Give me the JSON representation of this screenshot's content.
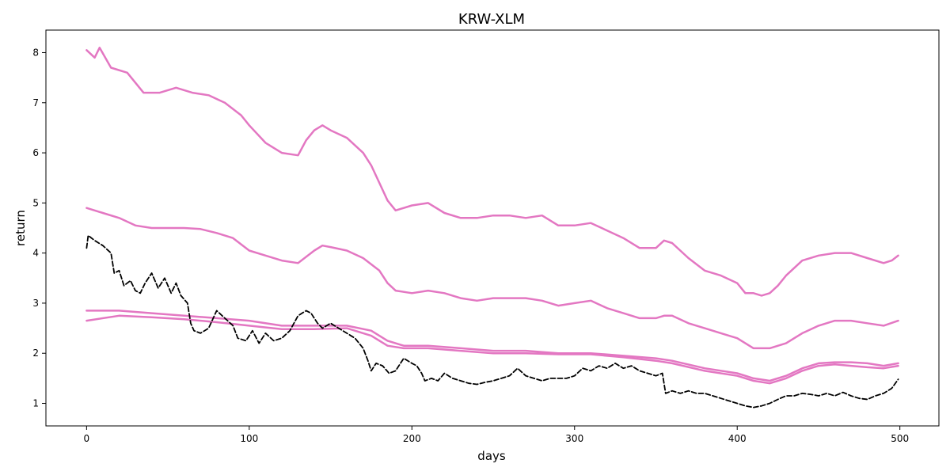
{
  "chart_data": {
    "type": "line",
    "title": "KRW-XLM",
    "xlabel": "days",
    "ylabel": "return",
    "xlim": [
      -25,
      524
    ],
    "ylim": [
      0.55,
      8.45
    ],
    "x_ticks": [
      0,
      100,
      200,
      300,
      400,
      500
    ],
    "y_ticks": [
      1,
      2,
      3,
      4,
      5,
      6,
      7,
      8
    ],
    "grid": false,
    "legend": "none",
    "series": [
      {
        "color": "#e377c2",
        "style": "solid",
        "points": [
          [
            0,
            8.05
          ],
          [
            5,
            7.9
          ],
          [
            8,
            8.1
          ],
          [
            15,
            7.7
          ],
          [
            25,
            7.6
          ],
          [
            35,
            7.2
          ],
          [
            45,
            7.2
          ],
          [
            55,
            7.3
          ],
          [
            65,
            7.2
          ],
          [
            75,
            7.15
          ],
          [
            85,
            7.0
          ],
          [
            95,
            6.75
          ],
          [
            100,
            6.55
          ],
          [
            110,
            6.2
          ],
          [
            120,
            6.0
          ],
          [
            130,
            5.95
          ],
          [
            135,
            6.25
          ],
          [
            140,
            6.45
          ],
          [
            145,
            6.55
          ],
          [
            150,
            6.45
          ],
          [
            160,
            6.3
          ],
          [
            170,
            6.0
          ],
          [
            175,
            5.75
          ],
          [
            180,
            5.4
          ],
          [
            185,
            5.05
          ],
          [
            190,
            4.85
          ],
          [
            200,
            4.95
          ],
          [
            210,
            5.0
          ],
          [
            220,
            4.8
          ],
          [
            230,
            4.7
          ],
          [
            240,
            4.7
          ],
          [
            250,
            4.75
          ],
          [
            260,
            4.75
          ],
          [
            270,
            4.7
          ],
          [
            280,
            4.75
          ],
          [
            290,
            4.55
          ],
          [
            300,
            4.55
          ],
          [
            310,
            4.6
          ],
          [
            320,
            4.45
          ],
          [
            330,
            4.3
          ],
          [
            340,
            4.1
          ],
          [
            350,
            4.1
          ],
          [
            355,
            4.25
          ],
          [
            360,
            4.2
          ],
          [
            370,
            3.9
          ],
          [
            380,
            3.65
          ],
          [
            390,
            3.55
          ],
          [
            400,
            3.4
          ],
          [
            405,
            3.2
          ],
          [
            410,
            3.2
          ],
          [
            415,
            3.15
          ],
          [
            420,
            3.2
          ],
          [
            425,
            3.35
          ],
          [
            430,
            3.55
          ],
          [
            440,
            3.85
          ],
          [
            450,
            3.95
          ],
          [
            460,
            4.0
          ],
          [
            470,
            4.0
          ],
          [
            480,
            3.9
          ],
          [
            490,
            3.8
          ],
          [
            495,
            3.85
          ],
          [
            499,
            3.95
          ]
        ]
      },
      {
        "color": "#e377c2",
        "style": "solid",
        "points": [
          [
            0,
            4.9
          ],
          [
            10,
            4.8
          ],
          [
            20,
            4.7
          ],
          [
            30,
            4.55
          ],
          [
            40,
            4.5
          ],
          [
            50,
            4.5
          ],
          [
            60,
            4.5
          ],
          [
            70,
            4.48
          ],
          [
            80,
            4.4
          ],
          [
            90,
            4.3
          ],
          [
            100,
            4.05
          ],
          [
            110,
            3.95
          ],
          [
            120,
            3.85
          ],
          [
            130,
            3.8
          ],
          [
            140,
            4.05
          ],
          [
            145,
            4.15
          ],
          [
            150,
            4.12
          ],
          [
            160,
            4.05
          ],
          [
            170,
            3.9
          ],
          [
            180,
            3.65
          ],
          [
            185,
            3.4
          ],
          [
            190,
            3.25
          ],
          [
            200,
            3.2
          ],
          [
            210,
            3.25
          ],
          [
            220,
            3.2
          ],
          [
            230,
            3.1
          ],
          [
            240,
            3.05
          ],
          [
            250,
            3.1
          ],
          [
            260,
            3.1
          ],
          [
            270,
            3.1
          ],
          [
            280,
            3.05
          ],
          [
            290,
            2.95
          ],
          [
            300,
            3.0
          ],
          [
            310,
            3.05
          ],
          [
            320,
            2.9
          ],
          [
            330,
            2.8
          ],
          [
            340,
            2.7
          ],
          [
            350,
            2.7
          ],
          [
            355,
            2.75
          ],
          [
            360,
            2.75
          ],
          [
            370,
            2.6
          ],
          [
            380,
            2.5
          ],
          [
            390,
            2.4
          ],
          [
            400,
            2.3
          ],
          [
            410,
            2.1
          ],
          [
            420,
            2.1
          ],
          [
            430,
            2.2
          ],
          [
            440,
            2.4
          ],
          [
            450,
            2.55
          ],
          [
            460,
            2.65
          ],
          [
            470,
            2.65
          ],
          [
            480,
            2.6
          ],
          [
            490,
            2.55
          ],
          [
            499,
            2.65
          ]
        ]
      },
      {
        "color": "#e377c2",
        "style": "solid",
        "points": [
          [
            0,
            2.85
          ],
          [
            20,
            2.85
          ],
          [
            40,
            2.8
          ],
          [
            60,
            2.75
          ],
          [
            80,
            2.7
          ],
          [
            100,
            2.65
          ],
          [
            120,
            2.55
          ],
          [
            140,
            2.55
          ],
          [
            160,
            2.55
          ],
          [
            175,
            2.45
          ],
          [
            185,
            2.25
          ],
          [
            195,
            2.15
          ],
          [
            210,
            2.15
          ],
          [
            230,
            2.1
          ],
          [
            250,
            2.05
          ],
          [
            270,
            2.05
          ],
          [
            290,
            2.0
          ],
          [
            310,
            2.0
          ],
          [
            330,
            1.95
          ],
          [
            350,
            1.9
          ],
          [
            360,
            1.85
          ],
          [
            380,
            1.7
          ],
          [
            400,
            1.6
          ],
          [
            410,
            1.5
          ],
          [
            420,
            1.45
          ],
          [
            430,
            1.55
          ],
          [
            440,
            1.7
          ],
          [
            450,
            1.8
          ],
          [
            460,
            1.82
          ],
          [
            470,
            1.82
          ],
          [
            480,
            1.8
          ],
          [
            490,
            1.75
          ],
          [
            499,
            1.8
          ]
        ]
      },
      {
        "color": "#e377c2",
        "style": "solid",
        "points": [
          [
            0,
            2.65
          ],
          [
            20,
            2.75
          ],
          [
            40,
            2.72
          ],
          [
            60,
            2.68
          ],
          [
            80,
            2.62
          ],
          [
            100,
            2.55
          ],
          [
            120,
            2.48
          ],
          [
            140,
            2.48
          ],
          [
            160,
            2.5
          ],
          [
            175,
            2.35
          ],
          [
            185,
            2.15
          ],
          [
            195,
            2.1
          ],
          [
            210,
            2.1
          ],
          [
            230,
            2.05
          ],
          [
            250,
            2.0
          ],
          [
            270,
            2.0
          ],
          [
            290,
            1.98
          ],
          [
            310,
            1.98
          ],
          [
            330,
            1.92
          ],
          [
            350,
            1.85
          ],
          [
            360,
            1.8
          ],
          [
            380,
            1.65
          ],
          [
            400,
            1.55
          ],
          [
            410,
            1.45
          ],
          [
            420,
            1.4
          ],
          [
            430,
            1.5
          ],
          [
            440,
            1.65
          ],
          [
            450,
            1.75
          ],
          [
            460,
            1.78
          ],
          [
            470,
            1.75
          ],
          [
            480,
            1.72
          ],
          [
            490,
            1.7
          ],
          [
            499,
            1.75
          ]
        ]
      },
      {
        "color": "#000000",
        "style": "dashed",
        "points": [
          [
            0,
            4.1
          ],
          [
            1,
            4.35
          ],
          [
            5,
            4.25
          ],
          [
            10,
            4.15
          ],
          [
            15,
            4.0
          ],
          [
            17,
            3.6
          ],
          [
            20,
            3.65
          ],
          [
            23,
            3.35
          ],
          [
            27,
            3.45
          ],
          [
            30,
            3.25
          ],
          [
            33,
            3.2
          ],
          [
            36,
            3.4
          ],
          [
            40,
            3.6
          ],
          [
            44,
            3.3
          ],
          [
            48,
            3.5
          ],
          [
            52,
            3.2
          ],
          [
            55,
            3.4
          ],
          [
            58,
            3.15
          ],
          [
            62,
            3.0
          ],
          [
            64,
            2.6
          ],
          [
            66,
            2.45
          ],
          [
            70,
            2.4
          ],
          [
            75,
            2.5
          ],
          [
            80,
            2.85
          ],
          [
            85,
            2.7
          ],
          [
            90,
            2.55
          ],
          [
            93,
            2.3
          ],
          [
            98,
            2.25
          ],
          [
            102,
            2.45
          ],
          [
            106,
            2.2
          ],
          [
            110,
            2.4
          ],
          [
            115,
            2.25
          ],
          [
            120,
            2.3
          ],
          [
            125,
            2.45
          ],
          [
            130,
            2.75
          ],
          [
            135,
            2.85
          ],
          [
            138,
            2.8
          ],
          [
            142,
            2.6
          ],
          [
            145,
            2.5
          ],
          [
            150,
            2.6
          ],
          [
            155,
            2.5
          ],
          [
            160,
            2.4
          ],
          [
            165,
            2.3
          ],
          [
            170,
            2.1
          ],
          [
            173,
            1.85
          ],
          [
            175,
            1.65
          ],
          [
            178,
            1.8
          ],
          [
            182,
            1.75
          ],
          [
            186,
            1.6
          ],
          [
            190,
            1.65
          ],
          [
            195,
            1.9
          ],
          [
            200,
            1.8
          ],
          [
            203,
            1.75
          ],
          [
            206,
            1.6
          ],
          [
            208,
            1.45
          ],
          [
            212,
            1.5
          ],
          [
            216,
            1.45
          ],
          [
            220,
            1.6
          ],
          [
            225,
            1.5
          ],
          [
            230,
            1.45
          ],
          [
            235,
            1.4
          ],
          [
            240,
            1.38
          ],
          [
            245,
            1.42
          ],
          [
            250,
            1.45
          ],
          [
            255,
            1.5
          ],
          [
            260,
            1.55
          ],
          [
            265,
            1.7
          ],
          [
            270,
            1.55
          ],
          [
            275,
            1.5
          ],
          [
            280,
            1.45
          ],
          [
            285,
            1.5
          ],
          [
            290,
            1.5
          ],
          [
            295,
            1.5
          ],
          [
            300,
            1.55
          ],
          [
            305,
            1.7
          ],
          [
            310,
            1.65
          ],
          [
            315,
            1.75
          ],
          [
            320,
            1.7
          ],
          [
            325,
            1.8
          ],
          [
            330,
            1.7
          ],
          [
            335,
            1.75
          ],
          [
            340,
            1.65
          ],
          [
            345,
            1.6
          ],
          [
            350,
            1.55
          ],
          [
            354,
            1.6
          ],
          [
            356,
            1.2
          ],
          [
            360,
            1.25
          ],
          [
            365,
            1.2
          ],
          [
            370,
            1.25
          ],
          [
            375,
            1.2
          ],
          [
            380,
            1.2
          ],
          [
            385,
            1.15
          ],
          [
            390,
            1.1
          ],
          [
            395,
            1.05
          ],
          [
            400,
            1.0
          ],
          [
            405,
            0.95
          ],
          [
            410,
            0.92
          ],
          [
            415,
            0.95
          ],
          [
            420,
            1.0
          ],
          [
            425,
            1.08
          ],
          [
            430,
            1.15
          ],
          [
            435,
            1.15
          ],
          [
            440,
            1.2
          ],
          [
            445,
            1.18
          ],
          [
            450,
            1.15
          ],
          [
            455,
            1.2
          ],
          [
            460,
            1.15
          ],
          [
            465,
            1.22
          ],
          [
            470,
            1.15
          ],
          [
            475,
            1.1
          ],
          [
            480,
            1.08
          ],
          [
            485,
            1.15
          ],
          [
            490,
            1.2
          ],
          [
            495,
            1.3
          ],
          [
            499,
            1.48
          ]
        ]
      }
    ]
  }
}
